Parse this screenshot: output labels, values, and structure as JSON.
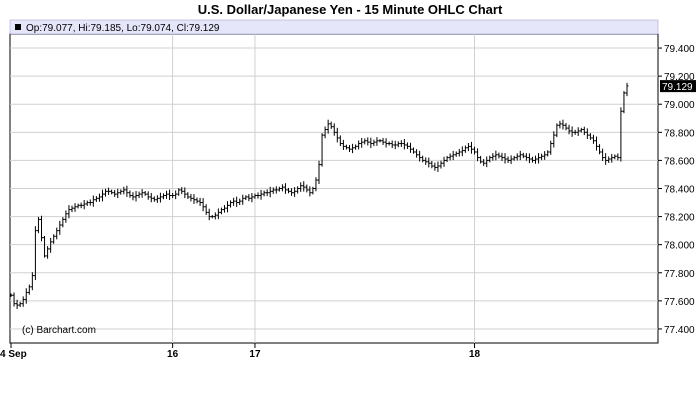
{
  "chart_data": {
    "type": "ohlc",
    "title": "U.S. Dollar/Japanese Yen - 15 Minute OHLC Chart",
    "ohlc_summary": "Op:79.077, Hi:79.185, Lo:79.074, Cl:79.129",
    "last_price": "79.129",
    "copyright": "(c) Barchart.com",
    "ylim": [
      77.3,
      79.5
    ],
    "y_ticks": [
      "79.400",
      "79.200",
      "79.000",
      "78.800",
      "78.600",
      "78.400",
      "78.200",
      "78.000",
      "77.800",
      "77.600",
      "77.400"
    ],
    "x_ticks": [
      {
        "label": "4 Sep",
        "bar": 0
      },
      {
        "label": "16",
        "bar": 53
      },
      {
        "label": "17",
        "bar": 80
      },
      {
        "label": "18",
        "bar": 152
      }
    ],
    "grid": true,
    "close_series": [
      77.64,
      77.58,
      77.57,
      77.58,
      77.61,
      77.66,
      77.7,
      77.78,
      78.1,
      78.18,
      78.05,
      77.92,
      77.97,
      78.02,
      78.06,
      78.1,
      78.14,
      78.18,
      78.22,
      78.25,
      78.26,
      78.27,
      78.28,
      78.28,
      78.29,
      78.3,
      78.3,
      78.32,
      78.33,
      78.34,
      78.36,
      78.38,
      78.38,
      78.37,
      78.36,
      78.37,
      78.38,
      78.39,
      78.37,
      78.35,
      78.34,
      78.35,
      78.36,
      78.37,
      78.36,
      78.34,
      78.33,
      78.32,
      78.33,
      78.34,
      78.35,
      78.36,
      78.35,
      78.35,
      78.36,
      78.39,
      78.38,
      78.36,
      78.34,
      78.33,
      78.32,
      78.31,
      78.3,
      78.27,
      78.23,
      78.2,
      78.2,
      78.21,
      78.23,
      78.25,
      78.26,
      78.28,
      78.3,
      78.31,
      78.3,
      78.31,
      78.33,
      78.34,
      78.33,
      78.34,
      78.35,
      78.35,
      78.36,
      78.37,
      78.37,
      78.38,
      78.39,
      78.39,
      78.4,
      78.41,
      78.39,
      78.38,
      78.37,
      78.38,
      78.4,
      78.42,
      78.41,
      78.39,
      78.37,
      78.4,
      78.46,
      78.57,
      78.78,
      78.82,
      78.86,
      78.84,
      78.8,
      78.76,
      78.72,
      78.7,
      78.69,
      78.68,
      78.69,
      78.7,
      78.72,
      78.73,
      78.74,
      78.73,
      78.72,
      78.73,
      78.74,
      78.74,
      78.73,
      78.72,
      78.72,
      78.71,
      78.71,
      78.72,
      78.72,
      78.71,
      78.7,
      78.68,
      78.66,
      78.64,
      78.62,
      78.6,
      78.59,
      78.58,
      78.56,
      78.55,
      78.56,
      78.58,
      78.6,
      78.62,
      78.63,
      78.64,
      78.65,
      78.66,
      78.67,
      78.69,
      78.7,
      78.68,
      78.66,
      78.62,
      78.59,
      78.58,
      78.6,
      78.62,
      78.63,
      78.64,
      78.63,
      78.62,
      78.61,
      78.6,
      78.61,
      78.62,
      78.63,
      78.64,
      78.63,
      78.62,
      78.61,
      78.6,
      78.61,
      78.62,
      78.63,
      78.64,
      78.66,
      78.72,
      78.78,
      78.85,
      78.86,
      78.85,
      78.83,
      78.81,
      78.8,
      78.8,
      78.81,
      78.82,
      78.8,
      78.78,
      78.76,
      78.74,
      78.7,
      78.66,
      78.62,
      78.6,
      78.61,
      78.62,
      78.63,
      78.62,
      78.95,
      79.08,
      79.13
    ]
  }
}
